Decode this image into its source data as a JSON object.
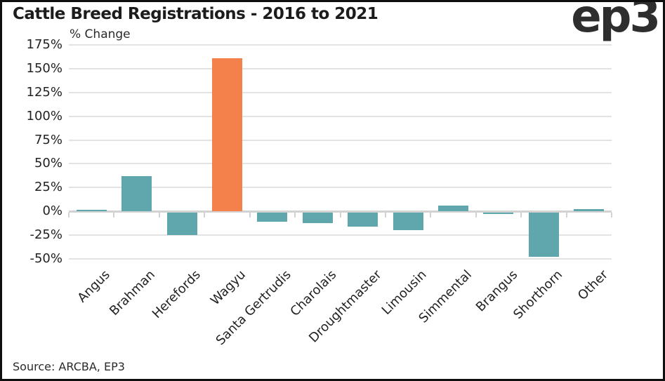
{
  "header": {
    "title": "Cattle Breed Registrations - 2016 to 2021",
    "logo_text": "ep3"
  },
  "footer": {
    "source": "Source: ARCBA, EP3"
  },
  "chart_data": {
    "type": "bar",
    "title": "Cattle Breed Registrations - 2016 to 2021",
    "xlabel": "",
    "ylabel": "% Change",
    "categories": [
      "Angus",
      "Brahman",
      "Herefords",
      "Wagyu",
      "Santa Gertrudis",
      "Charolais",
      "Droughtmaster",
      "Limousin",
      "Simmental",
      "Brangus",
      "Shorthorn",
      "Other"
    ],
    "values": [
      1.5,
      37,
      -24,
      161,
      -10,
      -11,
      -15,
      -19,
      6,
      -2,
      -47,
      2.5
    ],
    "ylim": [
      -50,
      175
    ],
    "ytick_step": 25,
    "ytick_suffix": "%",
    "grid": true,
    "legend": "none",
    "highlight_category": "Wagyu",
    "colors": {
      "bar": "#5FA7AC",
      "highlight": "#F4804C",
      "gridline": "#E3E3E3",
      "axis": "#D2D2D2",
      "tick": "#D2D2D2",
      "text": "#222222"
    }
  }
}
